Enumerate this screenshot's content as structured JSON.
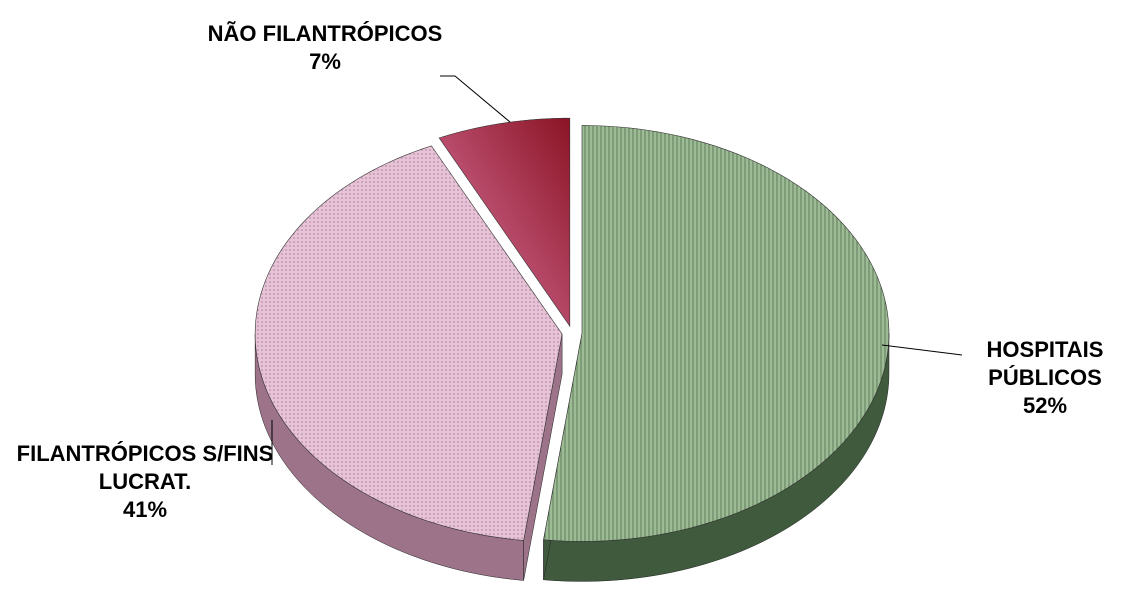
{
  "chart_data": {
    "type": "pie",
    "categories": [
      "HOSPITAIS PÚBLICOS",
      "FILANTRÓPICOS S/FINS LUCRAT.",
      "NÃO FILANTRÓPICOS"
    ],
    "values": [
      52,
      41,
      7
    ],
    "value_labels": [
      "52%",
      "41%",
      "7%"
    ],
    "colors": [
      "#8fae88",
      "#dcb4cb",
      "#c8557f"
    ]
  }
}
